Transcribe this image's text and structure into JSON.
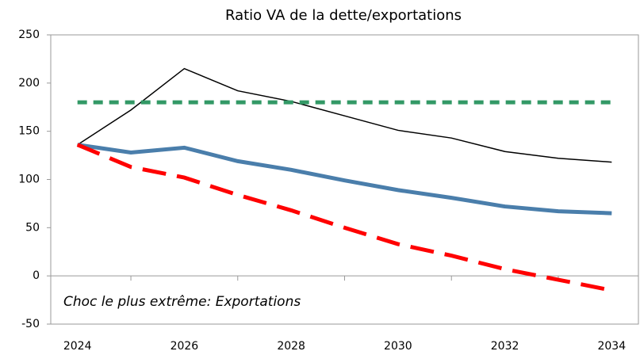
{
  "chart_data": {
    "type": "line",
    "title": "Ratio VA de la dette/exportations",
    "annotation": "Choc le plus extrême: Exportations",
    "categories": [
      "2024",
      null,
      "2026",
      null,
      "2028",
      null,
      "2030",
      null,
      "2032",
      null,
      "2034"
    ],
    "series": [
      {
        "color": "#000000",
        "linewidth": 1.5,
        "style": "solid",
        "values": [
          136,
          172,
          215,
          192,
          181,
          166,
          151,
          143,
          129,
          122,
          118
        ]
      },
      {
        "color": "#4a7eab",
        "linewidth": 5,
        "style": "solid",
        "values": [
          136,
          128,
          133,
          119,
          110,
          99,
          89,
          81,
          72,
          67,
          65
        ]
      },
      {
        "color": "#ff0000",
        "linewidth": 5,
        "style": "long-dashed",
        "values": [
          136,
          113,
          102,
          84,
          68,
          50,
          33,
          21,
          7,
          -4,
          -15
        ]
      },
      {
        "color": "#339966",
        "linewidth": 5,
        "style": "dashed",
        "values": [
          180,
          180,
          180,
          180,
          180,
          180,
          180,
          180,
          180,
          180,
          180
        ]
      }
    ],
    "ylim": [
      -50,
      250
    ],
    "yticks": [
      -50,
      0,
      50,
      100,
      150,
      200,
      250
    ],
    "grid": false
  }
}
